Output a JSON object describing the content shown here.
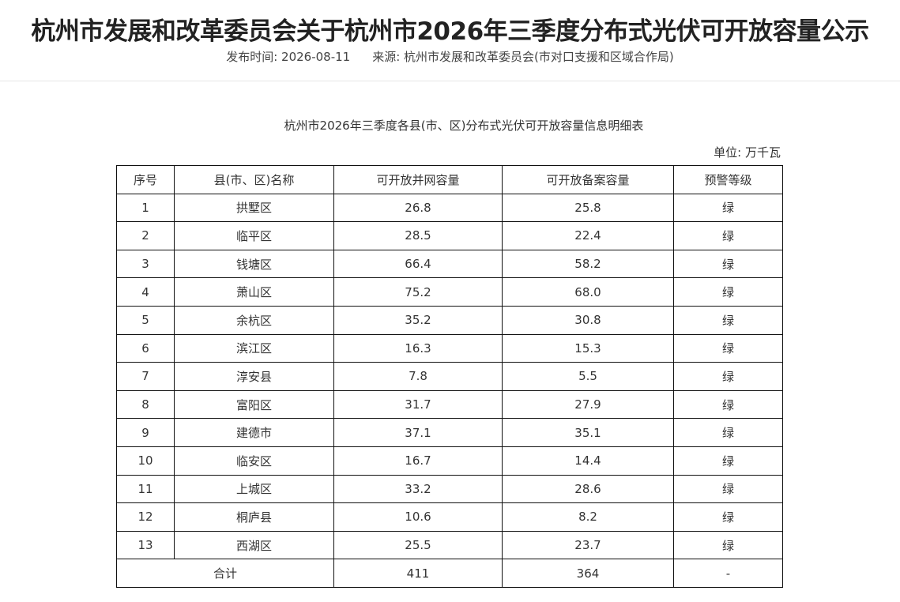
{
  "page": {
    "title": "杭州市发展和改革委员会关于杭州市2026年三季度分布式光伏可开放容量公示",
    "published_label": "发布时间: 2026-08-11",
    "source_label": "来源: 杭州市发展和改革委员会(市对口支援和区域合作局)"
  },
  "table": {
    "caption": "杭州市2026年三季度各县(市、区)分布式光伏可开放容量信息明细表",
    "unit": "单位:  万千瓦",
    "headers": [
      "序号",
      "县(市、区)名称",
      "可开放并网容量",
      "可开放备案容量",
      "预警等级"
    ],
    "rows": [
      [
        "1",
        "拱墅区",
        "26.8",
        "25.8",
        "绿"
      ],
      [
        "2",
        "临平区",
        "28.5",
        "22.4",
        "绿"
      ],
      [
        "3",
        "钱塘区",
        "66.4",
        "58.2",
        "绿"
      ],
      [
        "4",
        "萧山区",
        "75.2",
        "68.0",
        "绿"
      ],
      [
        "5",
        "余杭区",
        "35.2",
        "30.8",
        "绿"
      ],
      [
        "6",
        "滨江区",
        "16.3",
        "15.3",
        "绿"
      ],
      [
        "7",
        "淳安县",
        "7.8",
        "5.5",
        "绿"
      ],
      [
        "8",
        "富阳区",
        "31.7",
        "27.9",
        "绿"
      ],
      [
        "9",
        "建德市",
        "37.1",
        "35.1",
        "绿"
      ],
      [
        "10",
        "临安区",
        "16.7",
        "14.4",
        "绿"
      ],
      [
        "11",
        "上城区",
        "33.2",
        "28.6",
        "绿"
      ],
      [
        "12",
        "桐庐县",
        "10.6",
        "8.2",
        "绿"
      ],
      [
        "13",
        "西湖区",
        "25.5",
        "23.7",
        "绿"
      ]
    ],
    "total": {
      "label": "合计",
      "grid": "411",
      "filing": "364",
      "level": "-"
    }
  }
}
